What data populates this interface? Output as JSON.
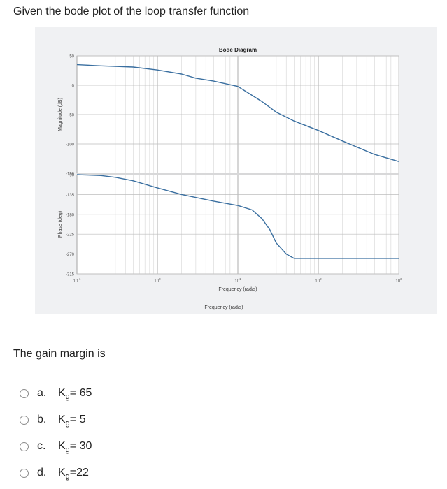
{
  "question": "Given the bode plot of the loop transfer function",
  "prompt": "The gain margin is",
  "options": [
    {
      "letter": "a.",
      "k": "K",
      "sub": "g",
      "eq": "= 65"
    },
    {
      "letter": "b.",
      "k": "K",
      "sub": "g",
      "eq": "= 5"
    },
    {
      "letter": "c.",
      "k": "K",
      "sub": "g",
      "eq": "= 30"
    },
    {
      "letter": "d.",
      "k": "K",
      "sub": "g",
      "eq": "=22"
    }
  ],
  "chart_data": {
    "type": "line",
    "title": "Bode Diagram",
    "xlabel": "Frequency (rad/s)",
    "xlabel_below": "Frequency (rad/s)",
    "x_scale": "log",
    "xlim": [
      0.1,
      1000
    ],
    "x_ticks": [
      {
        "base": "10",
        "exp": "-1"
      },
      {
        "base": "10",
        "exp": "0"
      },
      {
        "base": "10",
        "exp": "1"
      },
      {
        "base": "10",
        "exp": "2"
      },
      {
        "base": "10",
        "exp": "3"
      }
    ],
    "magnitude": {
      "ylabel": "Magnitude (dB)",
      "ylim": [
        -150,
        50
      ],
      "yticks": [
        "50",
        "0",
        "-50",
        "-100",
        "-150"
      ],
      "x": [
        0.1,
        0.2,
        0.5,
        1,
        2,
        3,
        5,
        10,
        20,
        30,
        50,
        100,
        200,
        500,
        1000
      ],
      "values": [
        35,
        33,
        31,
        26,
        19,
        12,
        7,
        -2,
        -28,
        -46,
        -61,
        -77,
        -95,
        -118,
        -130
      ]
    },
    "phase": {
      "ylabel": "Phase (deg)",
      "ylim": [
        -315,
        -90
      ],
      "yticks": [
        "-90",
        "-135",
        "-180",
        "-225",
        "-270",
        "-315"
      ],
      "x": [
        0.1,
        0.2,
        0.3,
        0.5,
        1,
        2,
        5,
        10,
        15,
        20,
        25,
        30,
        40,
        50,
        70,
        100,
        200,
        500,
        1000
      ],
      "values": [
        -90,
        -92,
        -96,
        -104,
        -120,
        -135,
        -150,
        -160,
        -170,
        -190,
        -215,
        -245,
        -270,
        -280,
        -280,
        -280,
        -280,
        -280,
        -280
      ]
    },
    "grid": true,
    "line_color": "#3a6fa0"
  }
}
